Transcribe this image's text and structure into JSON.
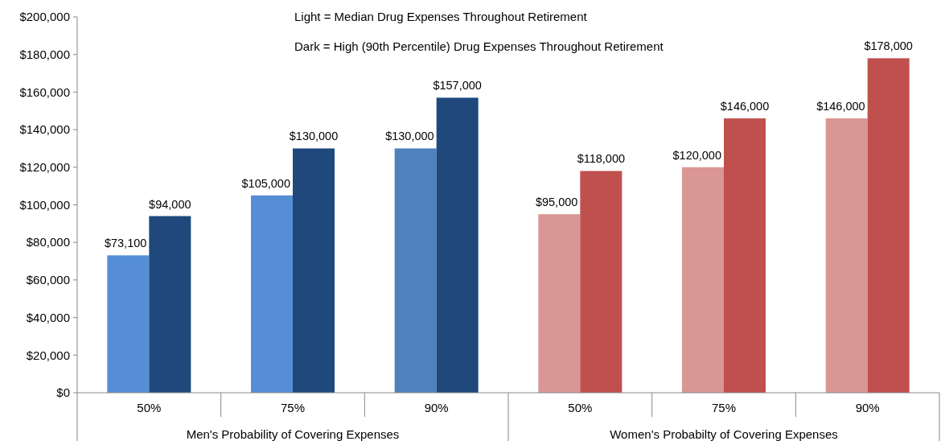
{
  "chart_data": {
    "type": "bar",
    "categories": [
      "50%",
      "75%",
      "90%",
      "50%",
      "75%",
      "90%"
    ],
    "series": [
      {
        "colors": [
          "#558ed5",
          "#558ed5",
          "#4f81bd",
          "#d99694",
          "#d99694",
          "#d99694"
        ],
        "values": [
          73100,
          105000,
          130000,
          95000,
          120000,
          146000
        ],
        "value_labels": [
          "$73,100",
          "$105,000",
          "$130,000",
          "$95,000",
          "$120,000",
          "$146,000"
        ]
      },
      {
        "colors": [
          "#1f497d",
          "#1f497d",
          "#1f497d",
          "#c0504d",
          "#c0504d",
          "#c0504d"
        ],
        "values": [
          94000,
          130000,
          157000,
          118000,
          146000,
          178000
        ],
        "value_labels": [
          "$94,000",
          "$130,000",
          "$157,000",
          "$118,000",
          "$146,000",
          "$178,000"
        ]
      }
    ],
    "ylim": [
      0,
      200000
    ],
    "yticks": [
      {
        "value": 0,
        "label": "$0"
      },
      {
        "value": 20000,
        "label": "$20,000"
      },
      {
        "value": 40000,
        "label": "$40,000"
      },
      {
        "value": 60000,
        "label": "$60,000"
      },
      {
        "value": 80000,
        "label": "$80,000"
      },
      {
        "value": 100000,
        "label": "$100,000"
      },
      {
        "value": 120000,
        "label": "$120,000"
      },
      {
        "value": 140000,
        "label": "$140,000"
      },
      {
        "value": 160000,
        "label": "$160,000"
      },
      {
        "value": 180000,
        "label": "$180,000"
      },
      {
        "value": 200000,
        "label": "$200,000"
      }
    ],
    "annotations": [
      "Light = Median Drug Expenses Throughout Retirement",
      "Dark = High (90th Percentile) Drug Expenses Throughout Retirement",
      "Men's Probability of Covering Expenses",
      "Women's Probabilty of Covering Expenses"
    ],
    "grid": false
  }
}
